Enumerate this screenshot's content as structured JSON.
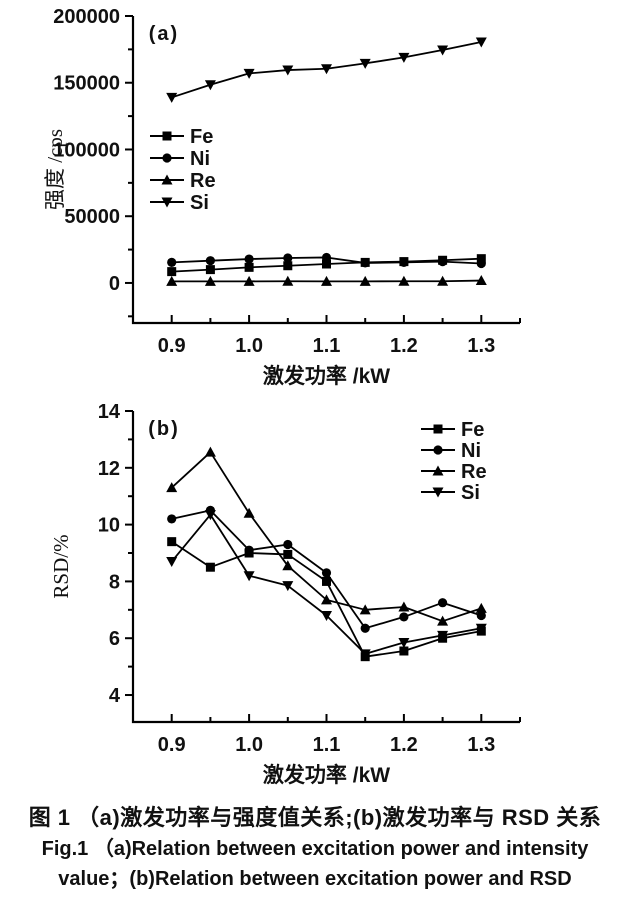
{
  "figure": {
    "caption_line1": "图 1  （a)激发功率与强度值关系;(b)激发功率与 RSD 关系",
    "caption_line2": "Fig.1  （a)Relation between excitation power and intensity",
    "caption_line3": "value；(b)Relation between excitation power and RSD"
  },
  "colors": {
    "line": "#000000",
    "text": "#111111",
    "background": "#ffffff"
  },
  "chart_data": [
    {
      "id": "a",
      "type": "line",
      "panel_label": "(a)",
      "xlabel": "激发功率 /kW",
      "ylabel": "强度 /cps",
      "x": [
        0.9,
        0.95,
        1.0,
        1.05,
        1.1,
        1.15,
        1.2,
        1.25,
        1.3
      ],
      "series": [
        {
          "name": "Fe",
          "marker": "square",
          "values": [
            8500,
            10000,
            11700,
            12900,
            14200,
            15400,
            16000,
            17000,
            18200
          ]
        },
        {
          "name": "Ni",
          "marker": "circle",
          "values": [
            15400,
            16700,
            17900,
            18700,
            19100,
            15000,
            15400,
            16000,
            14600
          ]
        },
        {
          "name": "Re",
          "marker": "triangle-up",
          "values": [
            1200,
            1200,
            1200,
            1300,
            1200,
            1200,
            1300,
            1300,
            1800
          ]
        },
        {
          "name": "Si",
          "marker": "triangle-down",
          "values": [
            139000,
            148500,
            157000,
            159500,
            160500,
            164500,
            169000,
            174500,
            180500
          ]
        }
      ],
      "xlim": [
        0.85,
        1.35
      ],
      "ylim": [
        -30000,
        200000
      ],
      "xticks": [
        0.9,
        1.0,
        1.1,
        1.2,
        1.3
      ],
      "xtick_labels": [
        "0.9",
        "1.0",
        "1.1",
        "1.2",
        "1.3"
      ],
      "xminor": [
        0.95,
        1.05,
        1.15,
        1.25,
        1.35
      ],
      "yticks": [
        0,
        50000,
        100000,
        150000,
        200000
      ],
      "ytick_labels": [
        "0",
        "50000",
        "100000",
        "150000",
        "200000"
      ],
      "yminor": [
        -25000,
        25000,
        75000,
        125000,
        175000
      ],
      "grid": false,
      "legend_position": "inside-left-middle",
      "legend": [
        "Fe",
        "Ni",
        "Re",
        "Si"
      ]
    },
    {
      "id": "b",
      "type": "line",
      "panel_label": "(b)",
      "xlabel": "激发功率 /kW",
      "ylabel": "RSD/%",
      "x": [
        0.9,
        0.95,
        1.0,
        1.05,
        1.1,
        1.15,
        1.2,
        1.25,
        1.3
      ],
      "series": [
        {
          "name": "Fe",
          "marker": "square",
          "values": [
            9.4,
            8.5,
            9.0,
            8.95,
            8.0,
            5.35,
            5.55,
            6.0,
            6.25
          ]
        },
        {
          "name": "Ni",
          "marker": "circle",
          "values": [
            10.2,
            10.5,
            9.1,
            9.3,
            8.3,
            6.35,
            6.75,
            7.25,
            6.8
          ]
        },
        {
          "name": "Re",
          "marker": "triangle-up",
          "values": [
            11.3,
            12.55,
            10.4,
            8.55,
            7.35,
            7.0,
            7.1,
            6.6,
            7.05
          ]
        },
        {
          "name": "Si",
          "marker": "triangle-down",
          "values": [
            8.7,
            10.35,
            8.2,
            7.85,
            6.8,
            5.45,
            5.85,
            6.1,
            6.35
          ]
        }
      ],
      "xlim": [
        0.85,
        1.35
      ],
      "ylim": [
        3.05,
        14
      ],
      "xticks": [
        0.9,
        1.0,
        1.1,
        1.2,
        1.3
      ],
      "xtick_labels": [
        "0.9",
        "1.0",
        "1.1",
        "1.2",
        "1.3"
      ],
      "xminor": [
        0.95,
        1.05,
        1.15,
        1.25,
        1.35
      ],
      "yticks": [
        4,
        6,
        8,
        10,
        12,
        14
      ],
      "ytick_labels": [
        "4",
        "6",
        "8",
        "10",
        "12",
        "14"
      ],
      "yminor": [
        5,
        7,
        9,
        11,
        13
      ],
      "grid": false,
      "legend_position": "inside-top-right",
      "legend": [
        "Fe",
        "Ni",
        "Re",
        "Si"
      ]
    }
  ]
}
